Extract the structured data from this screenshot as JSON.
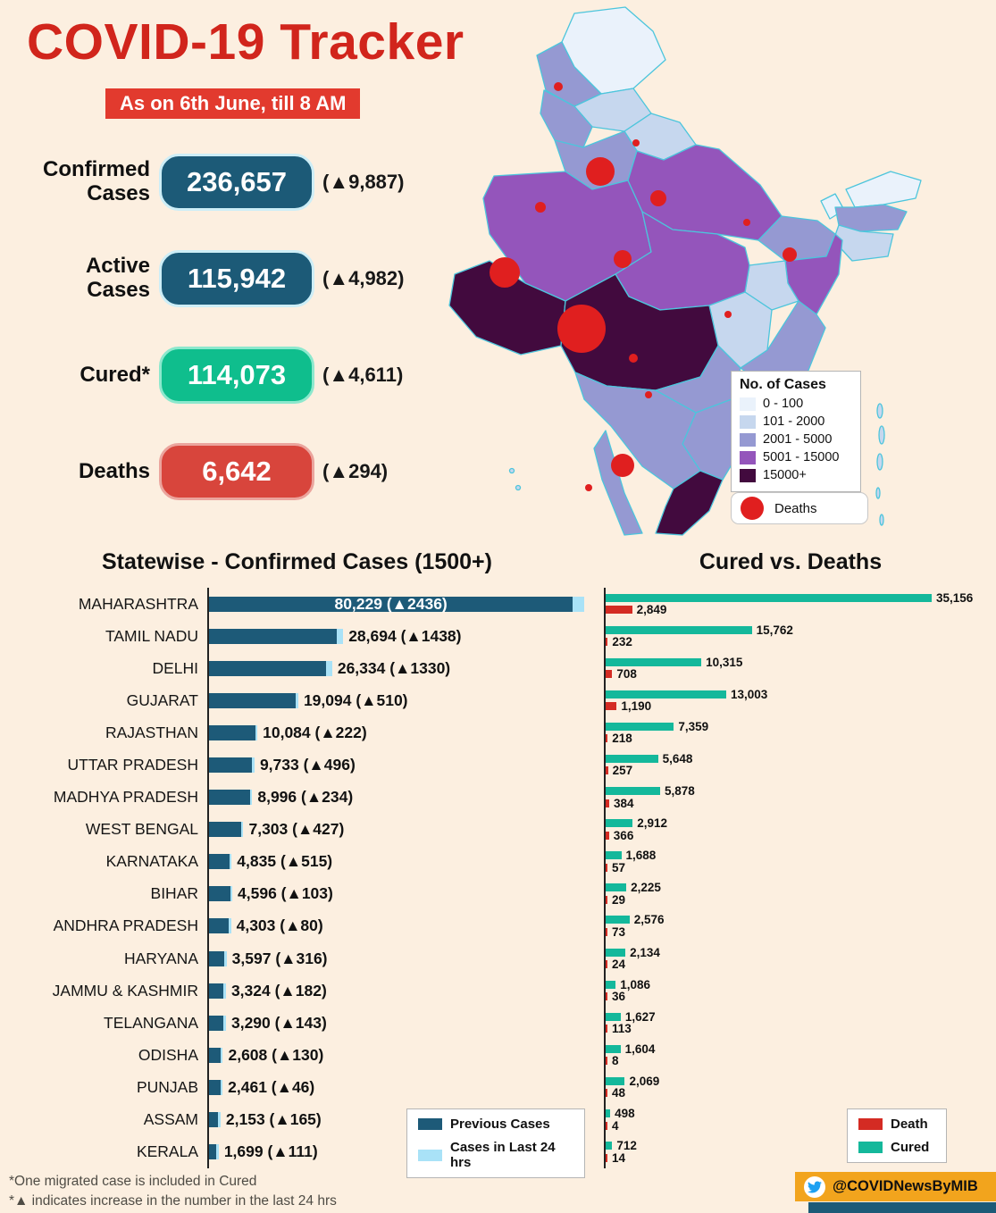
{
  "title": "COVID-19 Tracker",
  "date_note": "As on 6th June, till 8 AM",
  "stats": {
    "confirmed": {
      "label": "Confirmed Cases",
      "value": "236,657",
      "delta": "(▲9,887)"
    },
    "active": {
      "label": "Active Cases",
      "value": "115,942",
      "delta": "(▲4,982)"
    },
    "cured": {
      "label": "Cured*",
      "value": "114,073",
      "delta": "(▲4,611)"
    },
    "deaths": {
      "label": "Deaths",
      "value": "6,642",
      "delta": "(▲294)"
    }
  },
  "map_legend": {
    "title": "No. of Cases",
    "items": [
      {
        "label": "0 - 100",
        "color": "#eaf2fb"
      },
      {
        "label": "101 - 2000",
        "color": "#c6d7ee"
      },
      {
        "label": "2001 - 5000",
        "color": "#9599d2"
      },
      {
        "label": "5001 - 15000",
        "color": "#9455bb"
      },
      {
        "label": "15000+",
        "color": "#420a3e"
      }
    ],
    "deaths_label": "Deaths",
    "deaths_color": "#e01f1f"
  },
  "chart_data": [
    {
      "type": "bar",
      "orientation": "horizontal",
      "title": "Statewise - Confirmed Cases (1500+)",
      "categories": [
        "MAHARASHTRA",
        "TAMIL NADU",
        "DELHI",
        "GUJARAT",
        "RAJASTHAN",
        "UTTAR PRADESH",
        "MADHYA PRADESH",
        "WEST BENGAL",
        "KARNATAKA",
        "BIHAR",
        "ANDHRA PRADESH",
        "HARYANA",
        "JAMMU & KASHMIR",
        "TELANGANA",
        "ODISHA",
        "PUNJAB",
        "ASSAM",
        "KERALA"
      ],
      "totals": [
        80229,
        28694,
        26334,
        19094,
        10084,
        9733,
        8996,
        7303,
        4835,
        4596,
        4303,
        3597,
        3324,
        3290,
        2608,
        2461,
        2153,
        1699
      ],
      "series": [
        {
          "name": "Previous Cases",
          "color": "#1d5a78",
          "values": [
            77793,
            27256,
            25004,
            18584,
            9862,
            9237,
            8762,
            6876,
            4320,
            4493,
            4223,
            3281,
            3142,
            3147,
            2478,
            2415,
            1988,
            1588
          ]
        },
        {
          "name": "Cases in Last 24 hrs",
          "color": "#a9e2f7",
          "values": [
            2436,
            1438,
            1330,
            510,
            222,
            496,
            234,
            427,
            515,
            103,
            80,
            316,
            182,
            143,
            130,
            46,
            165,
            111
          ]
        }
      ],
      "bar_labels": [
        "80,229 (▲2436)",
        "28,694 (▲1438)",
        "26,334 (▲1330)",
        "19,094 (▲510)",
        "10,084 (▲222)",
        "9,733 (▲496)",
        "8,996 (▲234)",
        "7,303 (▲427)",
        "4,835 (▲515)",
        "4,596 (▲103)",
        "4,303 (▲80)",
        "3,597 (▲316)",
        "3,324 (▲182)",
        "3,290 (▲143)",
        "2,608 (▲130)",
        "2,461 (▲46)",
        "2,153 (▲165)",
        "1,699 (▲111)"
      ],
      "xmax": 80229,
      "legend_position": "bottom"
    },
    {
      "type": "bar",
      "orientation": "horizontal",
      "title": "Cured vs. Deaths",
      "categories": [
        "MAHARASHTRA",
        "TAMIL NADU",
        "DELHI",
        "GUJARAT",
        "RAJASTHAN",
        "UTTAR PRADESH",
        "MADHYA PRADESH",
        "WEST BENGAL",
        "KARNATAKA",
        "BIHAR",
        "ANDHRA PRADESH",
        "HARYANA",
        "JAMMU & KASHMIR",
        "TELANGANA",
        "ODISHA",
        "PUNJAB",
        "ASSAM",
        "KERALA"
      ],
      "series": [
        {
          "name": "Cured",
          "color": "#14b89b",
          "values": [
            35156,
            15762,
            10315,
            13003,
            7359,
            5648,
            5878,
            2912,
            1688,
            2225,
            2576,
            2134,
            1086,
            1627,
            1604,
            2069,
            498,
            712
          ]
        },
        {
          "name": "Death",
          "color": "#d42b23",
          "values": [
            2849,
            232,
            708,
            1190,
            218,
            257,
            384,
            366,
            57,
            29,
            73,
            24,
            36,
            113,
            8,
            48,
            4,
            14
          ]
        }
      ],
      "cured_labels": [
        "35,156",
        "15,762",
        "10,315",
        "13,003",
        "7,359",
        "5,648",
        "5,878",
        "2,912",
        "1,688",
        "2,225",
        "2,576",
        "2,134",
        "1,086",
        "1,627",
        "1,604",
        "2,069",
        "498",
        "712"
      ],
      "death_labels": [
        "2,849",
        "232",
        "708",
        "1,190",
        "218",
        "257",
        "384",
        "366",
        "57",
        "29",
        "73",
        "24",
        "36",
        "113",
        "8",
        "48",
        "4",
        "14"
      ],
      "xmax": 35156,
      "legend_position": "bottom-right"
    }
  ],
  "footnotes": [
    "*One migrated case is included in Cured",
    "*▲ indicates increase in the number in the last 24 hrs"
  ],
  "footer": {
    "handle": "@COVIDNewsByMIB"
  }
}
